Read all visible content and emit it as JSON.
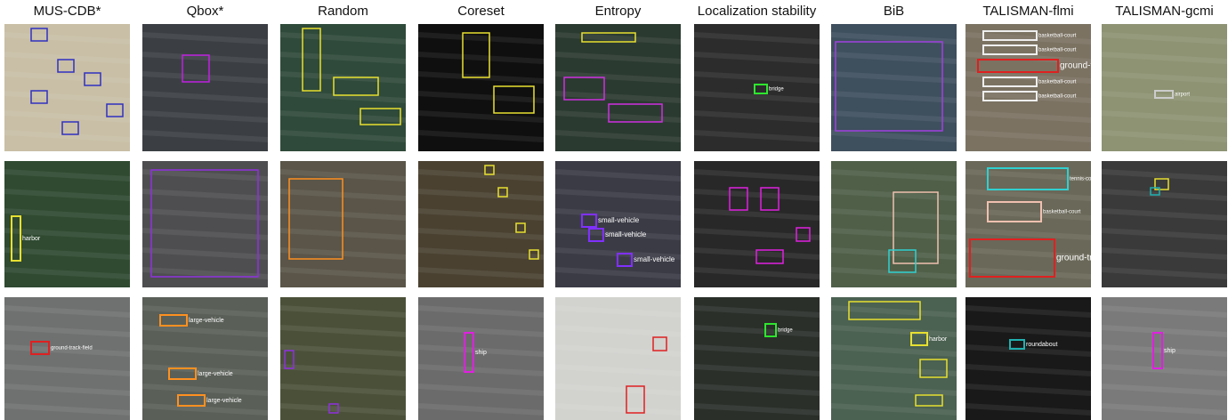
{
  "columns": [
    "MUS-CDB*",
    "Qbox*",
    "Random",
    "Coreset",
    "Entropy",
    "Localization stability",
    "BiB",
    "TALISMAN-flmi",
    "TALISMAN-gcmi"
  ],
  "rows": [
    [
      [],
      [],
      [],
      [],
      [],
      [
        "bridge"
      ],
      [],
      [
        "basketball-court",
        "basketball-court",
        "ground-track-field",
        "basketball-court",
        "basketball-court"
      ],
      [
        "airport"
      ]
    ],
    [
      [
        "harbor"
      ],
      [],
      [],
      [],
      [
        "small-vehicle",
        "small-vehicle",
        "small-vehicle"
      ],
      [],
      [],
      [
        "tennis-court",
        "basketball-court",
        "ground-track-field"
      ],
      []
    ],
    [
      [
        "ground-track-field"
      ],
      [
        "large-vehicle",
        "large-vehicle",
        "large-vehicle"
      ],
      [],
      [
        "ship"
      ],
      [],
      [
        "bridge"
      ],
      [
        "harbor"
      ],
      [
        "roundabout"
      ],
      [
        "ship"
      ]
    ]
  ]
}
